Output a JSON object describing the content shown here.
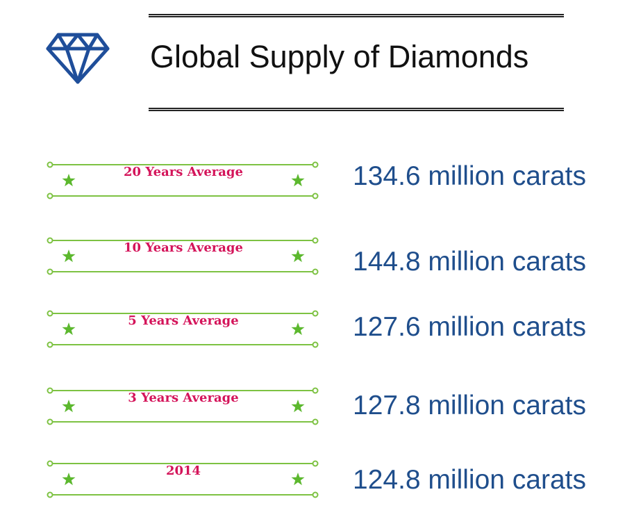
{
  "header": {
    "title": "Global Supply of Diamonds",
    "icon": "diamond-icon",
    "icon_color": "#1f4e9a"
  },
  "colors": {
    "banner_line": "#7dc242",
    "star": "#5cb82e",
    "label": "#d4145a",
    "value": "#1f4e8c"
  },
  "rows": [
    {
      "label": "20 Years Average",
      "value": "134.6 million carats"
    },
    {
      "label": "10 Years Average",
      "value": "144.8 million carats"
    },
    {
      "label": "5 Years Average",
      "value": "127.6 million carats"
    },
    {
      "label": "3 Years Average",
      "value": "127.8 million carats"
    },
    {
      "label": "2014",
      "value": "124.8 million carats"
    }
  ]
}
